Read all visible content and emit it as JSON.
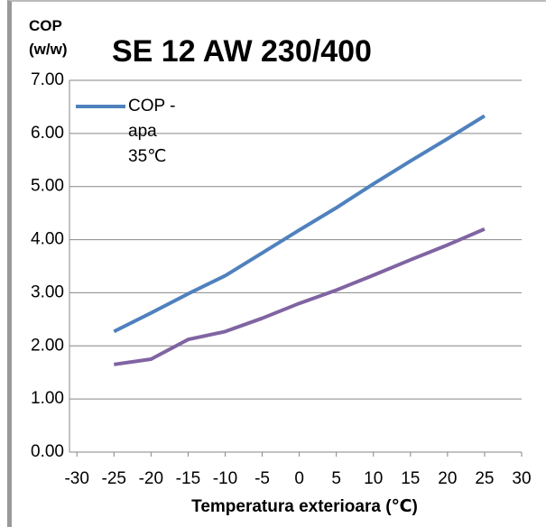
{
  "chart_data": {
    "type": "line",
    "title": "SE 12 AW 230/400",
    "y_label": "COP (w/w)",
    "x_label": "Temperatura exterioara (℃)",
    "x": [
      -25,
      -20,
      -15,
      -10,
      -5,
      0,
      5,
      10,
      15,
      20,
      25
    ],
    "series": [
      {
        "name": "COP - apa 35℃",
        "color": "#4f81bd",
        "values": [
          2.27,
          2.62,
          2.98,
          3.32,
          3.75,
          4.18,
          4.6,
          5.05,
          5.48,
          5.9,
          6.33
        ]
      },
      {
        "color": "#8064a2",
        "values": [
          1.65,
          1.75,
          2.12,
          2.27,
          2.52,
          2.8,
          3.05,
          3.33,
          3.62,
          3.9,
          4.2
        ]
      }
    ],
    "xlim": [
      -31,
      30
    ],
    "xticks": [
      -30,
      -25,
      -20,
      -15,
      -10,
      -5,
      0,
      5,
      10,
      15,
      20,
      25,
      30
    ],
    "ylim": [
      0,
      7
    ],
    "yticks": [
      {
        "value": 0,
        "label": "0.00"
      },
      {
        "value": 1,
        "label": "1.00"
      },
      {
        "value": 2,
        "label": "2.00"
      },
      {
        "value": 3,
        "label": "3.00"
      },
      {
        "value": 4,
        "label": "4.00"
      },
      {
        "value": 5,
        "label": "5.00"
      },
      {
        "value": 6,
        "label": "6.00"
      },
      {
        "value": 7,
        "label": "7.00"
      }
    ],
    "grid": true
  }
}
